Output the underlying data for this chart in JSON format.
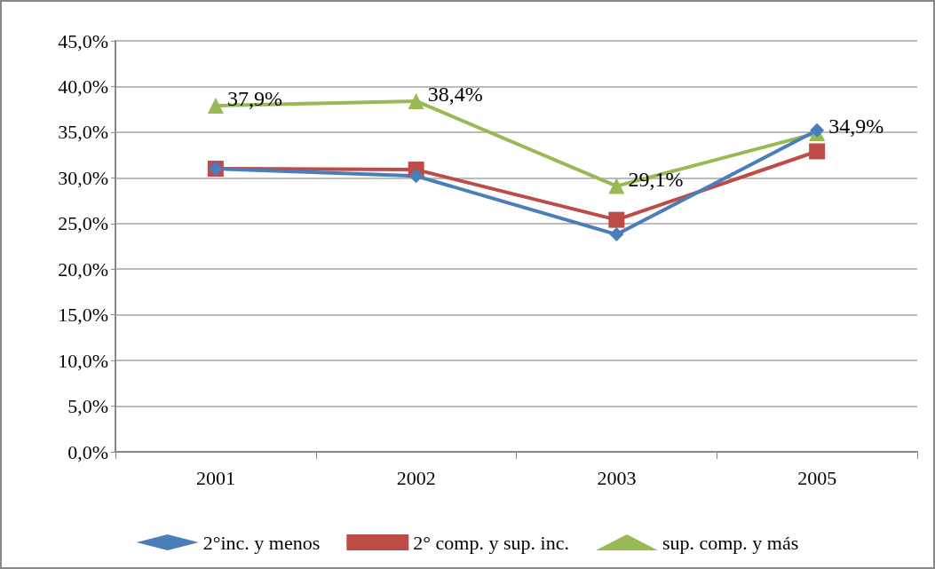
{
  "chart_data": {
    "type": "line",
    "categories": [
      "2001",
      "2002",
      "2003",
      "2005"
    ],
    "series": [
      {
        "name": "2°inc. y menos",
        "color": "#4a7ebb",
        "marker": "diamond",
        "values": [
          31.0,
          30.2,
          23.8,
          35.2
        ]
      },
      {
        "name": "2° comp. y sup. inc.",
        "color": "#be4b48",
        "marker": "square",
        "values": [
          31.0,
          30.9,
          25.4,
          32.9
        ]
      },
      {
        "name": "sup. comp. y más",
        "color": "#98b954",
        "marker": "triangle",
        "values": [
          37.9,
          38.4,
          29.1,
          34.9
        ],
        "value_labels": [
          "37,9%",
          "38,4%",
          "29,1%",
          "34,9%"
        ]
      }
    ],
    "ylim": [
      0,
      45
    ],
    "yticks": [
      {
        "value": 0,
        "label": "0,0%"
      },
      {
        "value": 5,
        "label": "5,0%"
      },
      {
        "value": 10,
        "label": "10,0%"
      },
      {
        "value": 15,
        "label": "15,0%"
      },
      {
        "value": 20,
        "label": "20,0%"
      },
      {
        "value": 25,
        "label": "25,0%"
      },
      {
        "value": 30,
        "label": "30,0%"
      },
      {
        "value": 35,
        "label": "35,0%"
      },
      {
        "value": 40,
        "label": "40,0%"
      },
      {
        "value": 45,
        "label": "45,0%"
      }
    ],
    "grid": "y",
    "legend": "bottom",
    "line_style": "solid"
  }
}
